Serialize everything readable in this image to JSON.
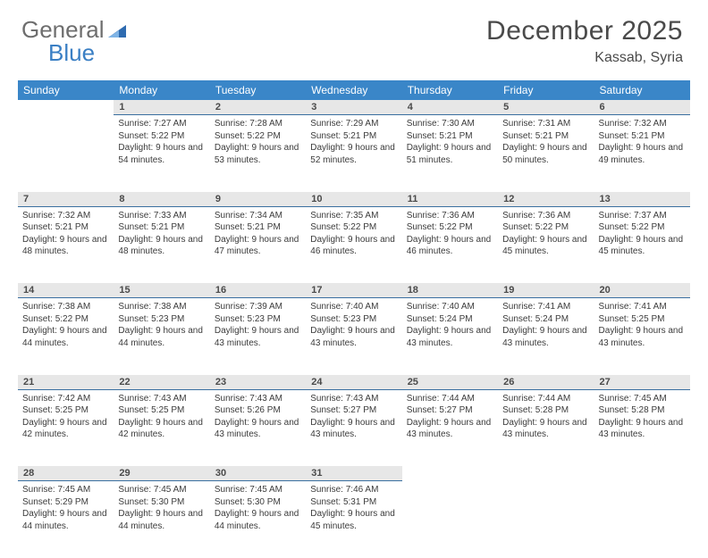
{
  "brand": {
    "part1": "General",
    "part2": "Blue"
  },
  "title": "December 2025",
  "location": "Kassab, Syria",
  "colors": {
    "header_bg": "#3a86c8",
    "header_text": "#ffffff",
    "daynum_bg": "#e7e7e7",
    "daynum_border": "#3a6fa0",
    "text": "#3b3b3b",
    "title_text": "#4a4a4a",
    "brand_gray": "#6e6e6e",
    "brand_blue": "#3a7fc4"
  },
  "typography": {
    "title_fontsize": 30,
    "location_fontsize": 16,
    "weekday_fontsize": 12,
    "daynum_fontsize": 11,
    "cell_fontsize": 10
  },
  "weekdays": [
    "Sunday",
    "Monday",
    "Tuesday",
    "Wednesday",
    "Thursday",
    "Friday",
    "Saturday"
  ],
  "weeks": [
    [
      null,
      {
        "n": "1",
        "sr": "7:27 AM",
        "ss": "5:22 PM",
        "dl": "9 hours and 54 minutes."
      },
      {
        "n": "2",
        "sr": "7:28 AM",
        "ss": "5:22 PM",
        "dl": "9 hours and 53 minutes."
      },
      {
        "n": "3",
        "sr": "7:29 AM",
        "ss": "5:21 PM",
        "dl": "9 hours and 52 minutes."
      },
      {
        "n": "4",
        "sr": "7:30 AM",
        "ss": "5:21 PM",
        "dl": "9 hours and 51 minutes."
      },
      {
        "n": "5",
        "sr": "7:31 AM",
        "ss": "5:21 PM",
        "dl": "9 hours and 50 minutes."
      },
      {
        "n": "6",
        "sr": "7:32 AM",
        "ss": "5:21 PM",
        "dl": "9 hours and 49 minutes."
      }
    ],
    [
      {
        "n": "7",
        "sr": "7:32 AM",
        "ss": "5:21 PM",
        "dl": "9 hours and 48 minutes."
      },
      {
        "n": "8",
        "sr": "7:33 AM",
        "ss": "5:21 PM",
        "dl": "9 hours and 48 minutes."
      },
      {
        "n": "9",
        "sr": "7:34 AM",
        "ss": "5:21 PM",
        "dl": "9 hours and 47 minutes."
      },
      {
        "n": "10",
        "sr": "7:35 AM",
        "ss": "5:22 PM",
        "dl": "9 hours and 46 minutes."
      },
      {
        "n": "11",
        "sr": "7:36 AM",
        "ss": "5:22 PM",
        "dl": "9 hours and 46 minutes."
      },
      {
        "n": "12",
        "sr": "7:36 AM",
        "ss": "5:22 PM",
        "dl": "9 hours and 45 minutes."
      },
      {
        "n": "13",
        "sr": "7:37 AM",
        "ss": "5:22 PM",
        "dl": "9 hours and 45 minutes."
      }
    ],
    [
      {
        "n": "14",
        "sr": "7:38 AM",
        "ss": "5:22 PM",
        "dl": "9 hours and 44 minutes."
      },
      {
        "n": "15",
        "sr": "7:38 AM",
        "ss": "5:23 PM",
        "dl": "9 hours and 44 minutes."
      },
      {
        "n": "16",
        "sr": "7:39 AM",
        "ss": "5:23 PM",
        "dl": "9 hours and 43 minutes."
      },
      {
        "n": "17",
        "sr": "7:40 AM",
        "ss": "5:23 PM",
        "dl": "9 hours and 43 minutes."
      },
      {
        "n": "18",
        "sr": "7:40 AM",
        "ss": "5:24 PM",
        "dl": "9 hours and 43 minutes."
      },
      {
        "n": "19",
        "sr": "7:41 AM",
        "ss": "5:24 PM",
        "dl": "9 hours and 43 minutes."
      },
      {
        "n": "20",
        "sr": "7:41 AM",
        "ss": "5:25 PM",
        "dl": "9 hours and 43 minutes."
      }
    ],
    [
      {
        "n": "21",
        "sr": "7:42 AM",
        "ss": "5:25 PM",
        "dl": "9 hours and 42 minutes."
      },
      {
        "n": "22",
        "sr": "7:43 AM",
        "ss": "5:25 PM",
        "dl": "9 hours and 42 minutes."
      },
      {
        "n": "23",
        "sr": "7:43 AM",
        "ss": "5:26 PM",
        "dl": "9 hours and 43 minutes."
      },
      {
        "n": "24",
        "sr": "7:43 AM",
        "ss": "5:27 PM",
        "dl": "9 hours and 43 minutes."
      },
      {
        "n": "25",
        "sr": "7:44 AM",
        "ss": "5:27 PM",
        "dl": "9 hours and 43 minutes."
      },
      {
        "n": "26",
        "sr": "7:44 AM",
        "ss": "5:28 PM",
        "dl": "9 hours and 43 minutes."
      },
      {
        "n": "27",
        "sr": "7:45 AM",
        "ss": "5:28 PM",
        "dl": "9 hours and 43 minutes."
      }
    ],
    [
      {
        "n": "28",
        "sr": "7:45 AM",
        "ss": "5:29 PM",
        "dl": "9 hours and 44 minutes."
      },
      {
        "n": "29",
        "sr": "7:45 AM",
        "ss": "5:30 PM",
        "dl": "9 hours and 44 minutes."
      },
      {
        "n": "30",
        "sr": "7:45 AM",
        "ss": "5:30 PM",
        "dl": "9 hours and 44 minutes."
      },
      {
        "n": "31",
        "sr": "7:46 AM",
        "ss": "5:31 PM",
        "dl": "9 hours and 45 minutes."
      },
      null,
      null,
      null
    ]
  ],
  "labels": {
    "sunrise": "Sunrise:",
    "sunset": "Sunset:",
    "daylight": "Daylight:"
  }
}
